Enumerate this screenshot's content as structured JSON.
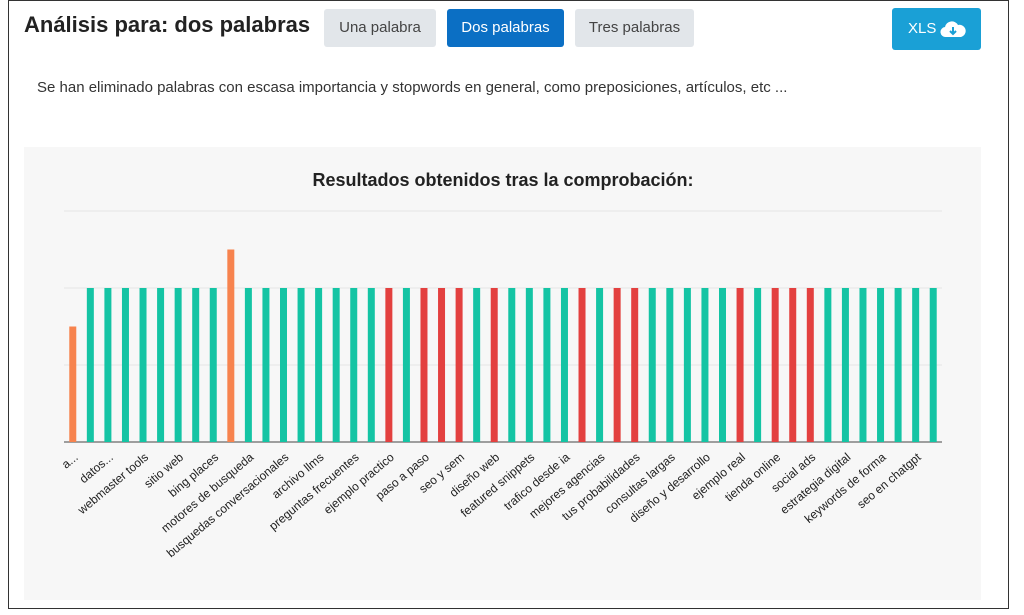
{
  "header": {
    "title": "Análisis para: dos palabras",
    "tabs": [
      "Una palabra",
      "Dos palabras",
      "Tres palabras"
    ],
    "export": "XLS"
  },
  "note": "Se han eliminado palabras con escasa importancia y stopwords en general, como preposiciones, artículos, etc ...",
  "chart_data": {
    "type": "bar",
    "title": "Resultados obtenidos tras la comprobación:",
    "categories": [
      "a...",
      null,
      "datos...",
      null,
      "webmaster tools",
      null,
      "sitio web",
      null,
      "bing places",
      null,
      "motores de busqueda",
      null,
      "busquedas conversacionales",
      null,
      "archivo llms",
      null,
      "preguntas frecuentes",
      null,
      "ejemplo practico",
      null,
      "paso a paso",
      null,
      "seo y sem",
      null,
      "diseño web",
      null,
      "featured snippets",
      null,
      "trafico desde ia",
      null,
      "mejores agencias",
      null,
      "tus probabilidades",
      null,
      "consultas largas",
      null,
      "diseño y desarrollo",
      null,
      "ejemplo real",
      null,
      "tienda online",
      null,
      "social ads",
      null,
      "estrategia digital",
      null,
      "keywords de forma",
      null,
      "seo en chatgpt",
      null
    ],
    "values": [
      3,
      4,
      4,
      4,
      4,
      4,
      4,
      4,
      4,
      5,
      4,
      4,
      4,
      4,
      4,
      4,
      4,
      4,
      4,
      4,
      4,
      4,
      4,
      4,
      4,
      4,
      4,
      4,
      4,
      4,
      4,
      4,
      4,
      4,
      4,
      4,
      4,
      4,
      4,
      4,
      4,
      4,
      4,
      4,
      4,
      4,
      4,
      4,
      4,
      4
    ],
    "colors": [
      "#f7834e",
      "#14c4a4",
      "#14c4a4",
      "#14c4a4",
      "#14c4a4",
      "#14c4a4",
      "#14c4a4",
      "#14c4a4",
      "#14c4a4",
      "#f7834e",
      "#14c4a4",
      "#14c4a4",
      "#14c4a4",
      "#14c4a4",
      "#14c4a4",
      "#14c4a4",
      "#14c4a4",
      "#14c4a4",
      "#e3403f",
      "#14c4a4",
      "#e3403f",
      "#e3403f",
      "#e3403f",
      "#14c4a4",
      "#e3403f",
      "#14c4a4",
      "#14c4a4",
      "#14c4a4",
      "#14c4a4",
      "#e3403f",
      "#14c4a4",
      "#e3403f",
      "#e3403f",
      "#14c4a4",
      "#14c4a4",
      "#14c4a4",
      "#14c4a4",
      "#14c4a4",
      "#e3403f",
      "#14c4a4",
      "#e3403f",
      "#e3403f",
      "#e3403f",
      "#14c4a4",
      "#14c4a4",
      "#14c4a4",
      "#14c4a4",
      "#14c4a4",
      "#14c4a4",
      "#14c4a4"
    ],
    "ylim": [
      0,
      6
    ],
    "yticks": [
      0,
      2,
      4,
      6
    ],
    "grid": true
  }
}
